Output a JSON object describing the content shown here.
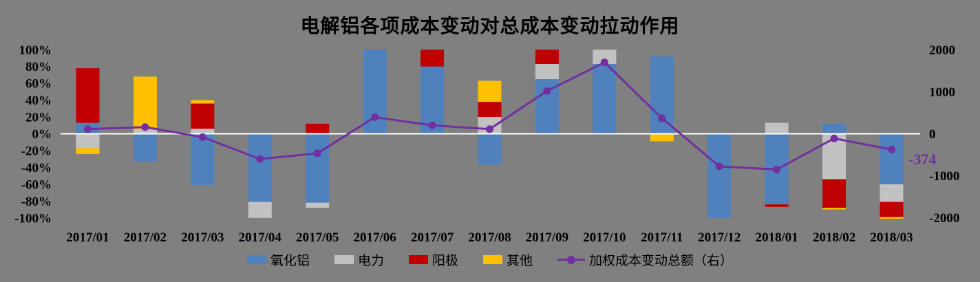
{
  "title": "电解铝各项成本变动对总成本变动拉动作用",
  "colors": {
    "background": "#808080",
    "alumina_blue": "#4F81BD",
    "power_gray": "#C2C2C2",
    "anode_red": "#C00000",
    "other_yellow": "#FFC000",
    "line_purple": "#7030A0",
    "zero_line": "#FFFFFF",
    "text": "#000000"
  },
  "chart_data": {
    "type": "bar",
    "subtype": "stacked-bar-with-line",
    "categories": [
      "2017/01",
      "2017/02",
      "2017/03",
      "2017/04",
      "2017/05",
      "2017/06",
      "2017/07",
      "2017/08",
      "2017/09",
      "2017/10",
      "2017/11",
      "2017/12",
      "2018/01",
      "2018/02",
      "2018/03"
    ],
    "series": [
      {
        "name": "氧化铝",
        "type": "bar",
        "axis": "left",
        "color_key": "alumina_blue",
        "values": [
          13,
          -33,
          -61,
          -81,
          -82,
          100,
          80,
          -37,
          65,
          83,
          92,
          -100,
          -84,
          12,
          -60
        ]
      },
      {
        "name": "电力",
        "type": "bar",
        "axis": "left",
        "color_key": "power_gray",
        "values": [
          -17,
          5,
          6,
          -19,
          -6,
          0,
          0,
          20,
          18,
          17,
          0,
          0,
          13,
          -54,
          -21
        ]
      },
      {
        "name": "阳极",
        "type": "bar",
        "axis": "left",
        "color_key": "anode_red",
        "values": [
          65,
          0,
          30,
          0,
          12,
          0,
          20,
          18,
          17,
          0,
          0,
          0,
          -3,
          -34,
          -18
        ]
      },
      {
        "name": "其他",
        "type": "bar",
        "axis": "left",
        "color_key": "other_yellow",
        "values": [
          -7,
          63,
          4,
          0,
          0,
          0,
          0,
          25,
          0,
          0,
          -9,
          0,
          0,
          -2,
          -2
        ]
      },
      {
        "name": "加权成本变动总额（右）",
        "type": "line",
        "axis": "right",
        "color_key": "line_purple",
        "values": [
          110,
          160,
          -80,
          -600,
          -465,
          395,
          200,
          110,
          1020,
          1700,
          370,
          -775,
          -850,
          -110,
          -374
        ]
      }
    ],
    "left_axis": {
      "min": -100,
      "max": 100,
      "step": 20,
      "ticks": [
        "100%",
        "80%",
        "60%",
        "40%",
        "20%",
        "0%",
        "-20%",
        "-40%",
        "-60%",
        "-80%",
        "-100%"
      ]
    },
    "right_axis": {
      "min": -2000,
      "max": 2000,
      "step": 1000,
      "ticks": [
        "2000",
        "1000",
        "0",
        "-1000",
        "-2000"
      ]
    },
    "annotation": {
      "text": "-374",
      "series": "加权成本变动总额（右）",
      "category": "2018/03"
    },
    "grid": "off",
    "legend_position": "bottom"
  }
}
